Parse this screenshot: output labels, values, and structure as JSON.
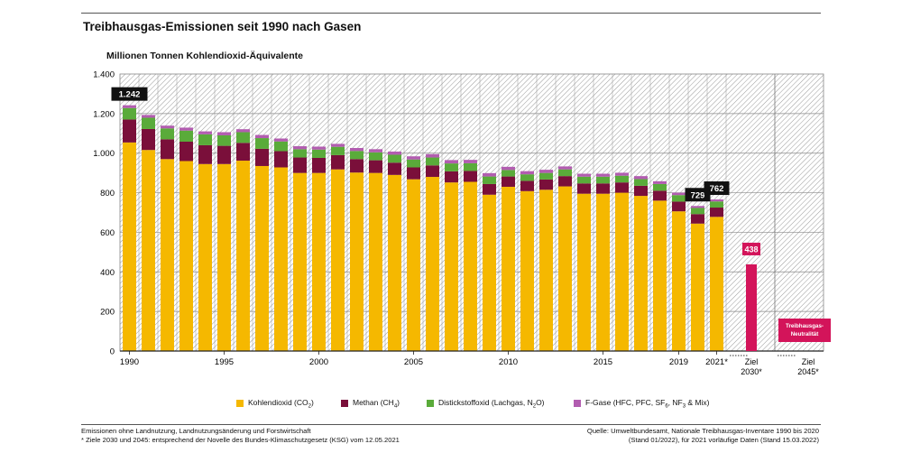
{
  "header": {
    "title": "Treibhausgas-Emissionen seit 1990 nach Gasen",
    "unit_label": "Millionen Tonnen Kohlendioxid-Äquivalente"
  },
  "colors": {
    "co2": "#f5b800",
    "ch4": "#7a0f3a",
    "n2o": "#5aab3a",
    "fgas": "#b25db0",
    "target": "#d3145a",
    "callout_bg": "#111111"
  },
  "legend": [
    {
      "key": "co2",
      "name": "Kohlendioxid (CO",
      "sub": "2",
      "tail": ")"
    },
    {
      "key": "ch4",
      "name": "Methan (CH",
      "sub": "4",
      "tail": ")"
    },
    {
      "key": "n2o",
      "name": "Distickstoffoxid (Lachgas, N",
      "sub": "2",
      "tail": "O)"
    },
    {
      "key": "fgas",
      "name": "F-Gase (HFC, PFC, SF",
      "sub": "6",
      "tail": ", NF",
      "sub2": "3",
      "tail2": " & Mix)"
    }
  ],
  "footer": {
    "left_line1": "Emissionen ohne Landnutzung, Landnutzungsänderung und Forstwirtschaft",
    "left_line2": "* Ziele 2030 und 2045: entsprechend der Novelle des Bundes-Klimaschutzgesetz (KSG) vom 12.05.2021",
    "right_line1": "Quelle: Umweltbundesamt, Nationale Treibhausgas-Inventare 1990 bis 2020",
    "right_line2": "(Stand 01/2022), für 2021 vorläufige Daten (Stand 15.03.2022)"
  },
  "chart_data": {
    "type": "bar",
    "stacked": true,
    "ylim": [
      0,
      1400
    ],
    "yticks": [
      0,
      200,
      400,
      600,
      800,
      1000,
      1200,
      1400
    ],
    "y_tick_labels": [
      "0",
      "200",
      "400",
      "600",
      "800",
      "1.000",
      "1.200",
      "1.400"
    ],
    "grid": true,
    "legend_position": "bottom",
    "years": [
      1990,
      1991,
      1992,
      1993,
      1994,
      1995,
      1996,
      1997,
      1998,
      1999,
      2000,
      2001,
      2002,
      2003,
      2004,
      2005,
      2006,
      2007,
      2008,
      2009,
      2010,
      2011,
      2012,
      2013,
      2014,
      2015,
      2016,
      2017,
      2018,
      2019,
      2020,
      2021
    ],
    "x_tick_labels": [
      {
        "year": 1990,
        "label": "1990"
      },
      {
        "year": 1995,
        "label": "1995"
      },
      {
        "year": 2000,
        "label": "2000"
      },
      {
        "year": 2005,
        "label": "2005"
      },
      {
        "year": 2010,
        "label": "2010"
      },
      {
        "year": 2015,
        "label": "2015"
      },
      {
        "year": 2019,
        "label": "2019"
      },
      {
        "year": 2021,
        "label": "2021*"
      }
    ],
    "series": [
      {
        "key": "co2",
        "name": "Kohlendioxid (CO2)",
        "values": [
          1054,
          1016,
          970,
          960,
          945,
          945,
          962,
          935,
          928,
          900,
          900,
          918,
          902,
          900,
          890,
          868,
          880,
          852,
          855,
          790,
          830,
          808,
          815,
          832,
          795,
          795,
          800,
          784,
          760,
          706,
          644,
          678
        ]
      },
      {
        "key": "ch4",
        "name": "Methan (CH4)",
        "values": [
          116,
          106,
          100,
          98,
          95,
          92,
          90,
          87,
          82,
          78,
          76,
          72,
          68,
          64,
          62,
          60,
          58,
          56,
          55,
          54,
          52,
          52,
          52,
          52,
          52,
          52,
          52,
          51,
          50,
          49,
          48,
          47
        ]
      },
      {
        "key": "n2o",
        "name": "Distickstoffoxid (Lachgas, N2O)",
        "values": [
          58,
          57,
          55,
          56,
          55,
          53,
          54,
          54,
          49,
          42,
          42,
          42,
          41,
          40,
          40,
          40,
          40,
          40,
          39,
          38,
          33,
          33,
          33,
          34,
          34,
          34,
          34,
          34,
          34,
          33,
          31,
          31
        ]
      },
      {
        "key": "fgas",
        "name": "F-Gase (HFC, PFC, SF6, NF3 & Mix)",
        "values": [
          14,
          14,
          14,
          15,
          15,
          16,
          15,
          16,
          15,
          15,
          15,
          15,
          15,
          16,
          16,
          16,
          17,
          17,
          17,
          17,
          16,
          16,
          16,
          15,
          15,
          15,
          15,
          15,
          14,
          12,
          10,
          10
        ]
      }
    ],
    "callouts": [
      {
        "year": 1990,
        "label": "1.242"
      },
      {
        "year": 2020,
        "label": "729"
      },
      {
        "year": 2021,
        "label": "762"
      }
    ],
    "targets": [
      {
        "label_line1": "Ziel",
        "label_line2": "2030*",
        "value": 438,
        "value_label": "438"
      },
      {
        "label_line1": "Ziel",
        "label_line2": "2045*",
        "value": 0,
        "text_line1": "Treibhausgas-",
        "text_line2": "Neutralität"
      }
    ]
  }
}
